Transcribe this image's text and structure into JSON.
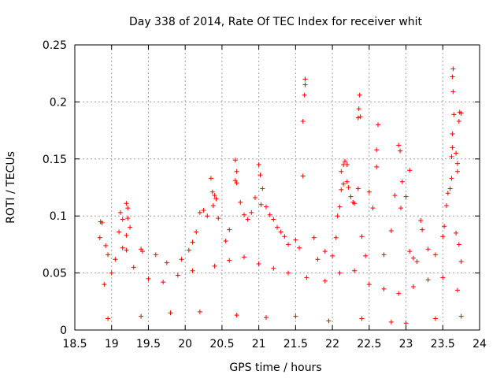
{
  "chart_data": {
    "type": "scatter",
    "title": "Day 338 of 2014, Rate Of TEC Index for receiver whit",
    "xlabel": "GPS time / hours",
    "ylabel": "ROTI / TECUs",
    "xlim": [
      18.5,
      24
    ],
    "ylim": [
      0,
      0.25
    ],
    "xticks": [
      "18.5",
      "19",
      "19.5",
      "20",
      "20.5",
      "21",
      "21.5",
      "22",
      "22.5",
      "23",
      "23.5",
      "24"
    ],
    "yticks": [
      "0",
      "0.05",
      "0.1",
      "0.15",
      "0.2",
      "0.25"
    ],
    "grid": true,
    "marker": "+",
    "color": "#ff0000",
    "series": [
      {
        "name": "ROTI",
        "points": [
          [
            18.85,
            0.095
          ],
          [
            18.87,
            0.094
          ],
          [
            18.84,
            0.081
          ],
          [
            18.92,
            0.074
          ],
          [
            18.95,
            0.066
          ],
          [
            19.05,
            0.062
          ],
          [
            19.2,
            0.111
          ],
          [
            19.22,
            0.107
          ],
          [
            19.22,
            0.098
          ],
          [
            19.12,
            0.103
          ],
          [
            19.15,
            0.097
          ],
          [
            19.25,
            0.09
          ],
          [
            19.1,
            0.086
          ],
          [
            19.2,
            0.083
          ],
          [
            19.15,
            0.072
          ],
          [
            19.2,
            0.07
          ],
          [
            19.4,
            0.071
          ],
          [
            19.42,
            0.069
          ],
          [
            19.6,
            0.066
          ],
          [
            19.75,
            0.059
          ],
          [
            19.95,
            0.062
          ],
          [
            20.05,
            0.07
          ],
          [
            20.1,
            0.077
          ],
          [
            20.15,
            0.086
          ],
          [
            20.2,
            0.103
          ],
          [
            20.25,
            0.105
          ],
          [
            20.3,
            0.1
          ],
          [
            20.35,
            0.133
          ],
          [
            20.37,
            0.121
          ],
          [
            20.4,
            0.118
          ],
          [
            20.42,
            0.115
          ],
          [
            20.38,
            0.109
          ],
          [
            20.45,
            0.098
          ],
          [
            20.55,
            0.078
          ],
          [
            20.6,
            0.088
          ],
          [
            20.68,
            0.149
          ],
          [
            20.7,
            0.139
          ],
          [
            20.68,
            0.131
          ],
          [
            20.7,
            0.129
          ],
          [
            20.75,
            0.112
          ],
          [
            20.8,
            0.101
          ],
          [
            20.85,
            0.097
          ],
          [
            20.9,
            0.103
          ],
          [
            20.95,
            0.116
          ],
          [
            21.0,
            0.145
          ],
          [
            21.02,
            0.136
          ],
          [
            21.05,
            0.124
          ],
          [
            21.03,
            0.11
          ],
          [
            21.1,
            0.108
          ],
          [
            21.15,
            0.101
          ],
          [
            21.2,
            0.097
          ],
          [
            21.25,
            0.09
          ],
          [
            21.3,
            0.086
          ],
          [
            21.35,
            0.082
          ],
          [
            21.4,
            0.075
          ],
          [
            21.5,
            0.079
          ],
          [
            21.55,
            0.072
          ],
          [
            21.6,
            0.135
          ],
          [
            21.6,
            0.183
          ],
          [
            21.62,
            0.206
          ],
          [
            21.63,
            0.215
          ],
          [
            21.63,
            0.22
          ],
          [
            21.75,
            0.081
          ],
          [
            21.8,
            0.062
          ],
          [
            21.9,
            0.069
          ],
          [
            22.0,
            0.065
          ],
          [
            22.05,
            0.081
          ],
          [
            22.07,
            0.1
          ],
          [
            22.1,
            0.108
          ],
          [
            22.12,
            0.123
          ],
          [
            22.12,
            0.139
          ],
          [
            22.15,
            0.145
          ],
          [
            22.17,
            0.148
          ],
          [
            22.2,
            0.145
          ],
          [
            22.15,
            0.128
          ],
          [
            22.2,
            0.13
          ],
          [
            22.22,
            0.125
          ],
          [
            22.25,
            0.117
          ],
          [
            22.28,
            0.112
          ],
          [
            22.3,
            0.111
          ],
          [
            22.35,
            0.124
          ],
          [
            22.35,
            0.186
          ],
          [
            22.36,
            0.194
          ],
          [
            22.37,
            0.206
          ],
          [
            22.38,
            0.187
          ],
          [
            22.4,
            0.082
          ],
          [
            22.45,
            0.065
          ],
          [
            22.5,
            0.121
          ],
          [
            22.55,
            0.107
          ],
          [
            22.6,
            0.143
          ],
          [
            22.6,
            0.158
          ],
          [
            22.62,
            0.18
          ],
          [
            22.7,
            0.066
          ],
          [
            22.8,
            0.087
          ],
          [
            22.85,
            0.118
          ],
          [
            22.9,
            0.162
          ],
          [
            22.92,
            0.157
          ],
          [
            22.95,
            0.13
          ],
          [
            22.93,
            0.107
          ],
          [
            23.0,
            0.117
          ],
          [
            23.05,
            0.14
          ],
          [
            23.05,
            0.069
          ],
          [
            23.1,
            0.063
          ],
          [
            23.15,
            0.06
          ],
          [
            23.2,
            0.096
          ],
          [
            23.22,
            0.088
          ],
          [
            23.3,
            0.071
          ],
          [
            23.4,
            0.066
          ],
          [
            23.5,
            0.082
          ],
          [
            23.52,
            0.091
          ],
          [
            23.55,
            0.109
          ],
          [
            23.57,
            0.12
          ],
          [
            23.6,
            0.124
          ],
          [
            23.62,
            0.133
          ],
          [
            23.62,
            0.152
          ],
          [
            23.63,
            0.16
          ],
          [
            23.63,
            0.172
          ],
          [
            23.65,
            0.189
          ],
          [
            23.64,
            0.209
          ],
          [
            23.63,
            0.222
          ],
          [
            23.64,
            0.229
          ],
          [
            23.68,
            0.155
          ],
          [
            23.7,
            0.146
          ],
          [
            23.7,
            0.139
          ],
          [
            23.72,
            0.183
          ],
          [
            23.73,
            0.191
          ],
          [
            23.75,
            0.19
          ],
          [
            23.75,
            0.06
          ],
          [
            23.72,
            0.075
          ],
          [
            23.68,
            0.085
          ],
          [
            18.9,
            0.04
          ],
          [
            19.0,
            0.05
          ],
          [
            19.3,
            0.055
          ],
          [
            19.5,
            0.045
          ],
          [
            19.7,
            0.042
          ],
          [
            19.9,
            0.048
          ],
          [
            20.1,
            0.052
          ],
          [
            20.4,
            0.056
          ],
          [
            20.6,
            0.061
          ],
          [
            20.8,
            0.064
          ],
          [
            21.0,
            0.058
          ],
          [
            21.2,
            0.054
          ],
          [
            21.4,
            0.05
          ],
          [
            21.65,
            0.046
          ],
          [
            21.9,
            0.043
          ],
          [
            22.1,
            0.05
          ],
          [
            22.3,
            0.052
          ],
          [
            22.5,
            0.04
          ],
          [
            22.7,
            0.036
          ],
          [
            22.9,
            0.032
          ],
          [
            23.1,
            0.038
          ],
          [
            23.3,
            0.044
          ],
          [
            23.5,
            0.046
          ],
          [
            23.7,
            0.035
          ],
          [
            18.95,
            0.01
          ],
          [
            19.4,
            0.012
          ],
          [
            19.8,
            0.015
          ],
          [
            20.2,
            0.016
          ],
          [
            20.7,
            0.013
          ],
          [
            21.1,
            0.011
          ],
          [
            21.5,
            0.012
          ],
          [
            21.95,
            0.008
          ],
          [
            22.4,
            0.01
          ],
          [
            22.8,
            0.007
          ],
          [
            23.0,
            0.006
          ],
          [
            23.4,
            0.01
          ],
          [
            23.75,
            0.012
          ]
        ]
      }
    ]
  }
}
